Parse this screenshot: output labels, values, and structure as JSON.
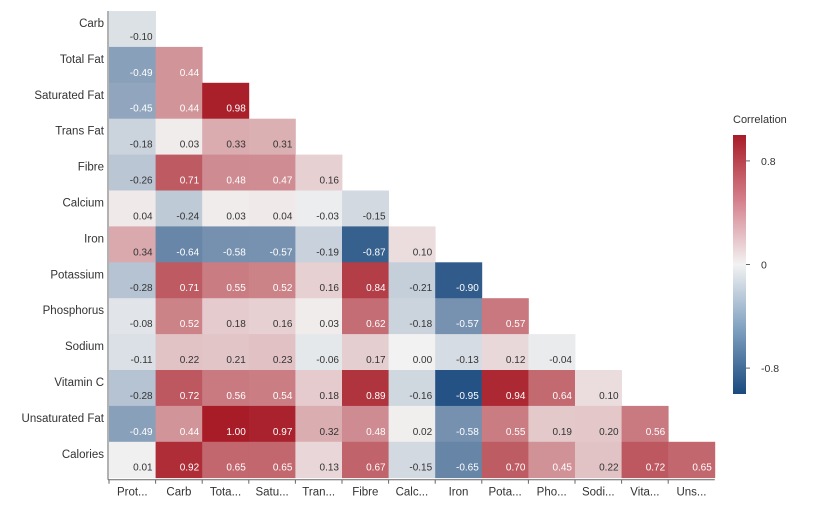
{
  "chart_data": {
    "type": "heatmap",
    "title": "",
    "xlabel": "",
    "ylabel": "",
    "x_tick_labels": [
      "Prot...",
      "Carb",
      "Tota...",
      "Satu...",
      "Tran...",
      "Fibre",
      "Calc...",
      "Iron",
      "Pota...",
      "Pho...",
      "Sodi...",
      "Vita...",
      "Uns..."
    ],
    "y_tick_labels": [
      "Carb",
      "Total Fat",
      "Saturated Fat",
      "Trans Fat",
      "Fibre",
      "Calcium",
      "Iron",
      "Potassium",
      "Phosphorus",
      "Sodium",
      "Vitamin C",
      "Unsaturated Fat",
      "Calories"
    ],
    "values": [
      [
        -0.1
      ],
      [
        -0.49,
        0.44
      ],
      [
        -0.45,
        0.44,
        0.98
      ],
      [
        -0.18,
        0.03,
        0.33,
        0.31
      ],
      [
        -0.26,
        0.71,
        0.48,
        0.47,
        0.16
      ],
      [
        0.04,
        -0.24,
        0.03,
        0.04,
        -0.03,
        -0.15
      ],
      [
        0.34,
        -0.64,
        -0.58,
        -0.57,
        -0.19,
        -0.87,
        0.1
      ],
      [
        -0.28,
        0.71,
        0.55,
        0.52,
        0.16,
        0.84,
        -0.21,
        -0.9
      ],
      [
        -0.08,
        0.52,
        0.18,
        0.16,
        0.03,
        0.62,
        -0.18,
        -0.57,
        0.57
      ],
      [
        -0.11,
        0.22,
        0.21,
        0.23,
        -0.06,
        0.17,
        0.0,
        -0.13,
        0.12,
        -0.04
      ],
      [
        -0.28,
        0.72,
        0.56,
        0.54,
        0.18,
        0.89,
        -0.16,
        -0.95,
        0.94,
        0.64,
        0.1
      ],
      [
        -0.49,
        0.44,
        1.0,
        0.97,
        0.32,
        0.48,
        0.02,
        -0.58,
        0.55,
        0.19,
        0.2,
        0.56
      ],
      [
        0.01,
        0.92,
        0.65,
        0.65,
        0.13,
        0.67,
        -0.15,
        -0.65,
        0.7,
        0.45,
        0.22,
        0.72,
        0.65
      ]
    ],
    "value_range": [
      -1,
      1
    ],
    "colorbar": {
      "title": "Correlation",
      "ticks": [
        0.8,
        0,
        -0.8
      ],
      "tick_labels": [
        "0.8",
        "0",
        "-0.8"
      ],
      "placement": "right"
    },
    "colors": {
      "negative": "#1a4a7e",
      "neutral": "#f2f2f2",
      "positive": "#a81c27",
      "axis": "#666666",
      "text_dark": "#333333",
      "text_light": "#ffffff"
    },
    "grid": false
  }
}
